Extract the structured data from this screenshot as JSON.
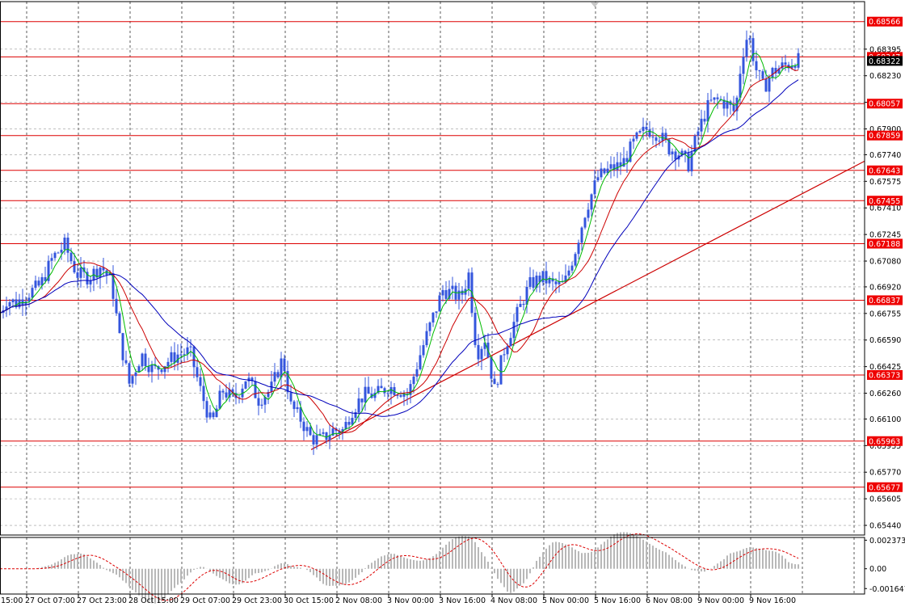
{
  "chart_data": {
    "type": "candlestick",
    "price_axis": {
      "range": [
        0.6538,
        0.6869
      ],
      "ticks": [
        0.68395,
        0.6823,
        0.68065,
        0.679,
        0.6774,
        0.67575,
        0.6741,
        0.67245,
        0.6708,
        0.6692,
        0.66755,
        0.6659,
        0.66425,
        0.6626,
        0.661,
        0.65935,
        0.6577,
        0.65605,
        0.6544
      ],
      "current_price": 0.68322
    },
    "time_axis": {
      "labels": [
        "27 Oct 07:00",
        "27 Oct 23:00",
        "28 Oct 15:00",
        "29 Oct 07:00",
        "29 Oct 23:00",
        "30 Oct 15:00",
        "2 Nov 08:00",
        "3 Nov 00:00",
        "3 Nov 16:00",
        "4 Nov 08:00",
        "5 Nov 00:00",
        "5 Nov 16:00",
        "6 Nov 08:00",
        "9 Nov 00:00",
        "9 Nov 16:00"
      ],
      "first_label_partial": "15:00"
    },
    "horizontal_levels": [
      0.68566,
      0.68347,
      0.68057,
      0.67859,
      0.67643,
      0.67455,
      0.67188,
      0.66837,
      0.66373,
      0.65963,
      0.65677
    ],
    "trendline": {
      "from": [
        385,
        0.6591
      ],
      "to": [
        1070,
        0.677
      ]
    },
    "anchors": [
      [
        0,
        0.6676
      ],
      [
        8,
        0.6684
      ],
      [
        20,
        0.6682
      ],
      [
        35,
        0.6688
      ],
      [
        50,
        0.6693
      ],
      [
        65,
        0.671
      ],
      [
        80,
        0.6718
      ],
      [
        95,
        0.67
      ],
      [
        110,
        0.6698
      ],
      [
        125,
        0.6705
      ],
      [
        138,
        0.6695
      ],
      [
        148,
        0.666
      ],
      [
        160,
        0.6632
      ],
      [
        175,
        0.665
      ],
      [
        190,
        0.664
      ],
      [
        205,
        0.6645
      ],
      [
        220,
        0.665
      ],
      [
        235,
        0.6652
      ],
      [
        248,
        0.6628
      ],
      [
        262,
        0.6606
      ],
      [
        275,
        0.6628
      ],
      [
        290,
        0.6622
      ],
      [
        305,
        0.6636
      ],
      [
        320,
        0.6622
      ],
      [
        335,
        0.6628
      ],
      [
        350,
        0.6648
      ],
      [
        360,
        0.6618
      ],
      [
        372,
        0.661
      ],
      [
        385,
        0.6598
      ],
      [
        398,
        0.6597
      ],
      [
        412,
        0.6603
      ],
      [
        425,
        0.6603
      ],
      [
        435,
        0.6615
      ],
      [
        450,
        0.6625
      ],
      [
        465,
        0.6625
      ],
      [
        480,
        0.663
      ],
      [
        495,
        0.6628
      ],
      [
        505,
        0.6625
      ],
      [
        520,
        0.665
      ],
      [
        535,
        0.6672
      ],
      [
        548,
        0.669
      ],
      [
        560,
        0.6688
      ],
      [
        570,
        0.6685
      ],
      [
        580,
        0.67
      ],
      [
        590,
        0.665
      ],
      [
        600,
        0.666
      ],
      [
        612,
        0.6628
      ],
      [
        625,
        0.6655
      ],
      [
        640,
        0.6675
      ],
      [
        655,
        0.6693
      ],
      [
        670,
        0.6698
      ],
      [
        685,
        0.6693
      ],
      [
        698,
        0.6693
      ],
      [
        712,
        0.6715
      ],
      [
        725,
        0.674
      ],
      [
        740,
        0.676
      ],
      [
        755,
        0.6765
      ],
      [
        770,
        0.6768
      ],
      [
        785,
        0.6782
      ],
      [
        800,
        0.679
      ],
      [
        815,
        0.6787
      ],
      [
        828,
        0.6778
      ],
      [
        840,
        0.6775
      ],
      [
        852,
        0.6768
      ],
      [
        865,
        0.679
      ],
      [
        878,
        0.6806
      ],
      [
        890,
        0.6808
      ],
      [
        900,
        0.6805
      ],
      [
        910,
        0.68
      ],
      [
        918,
        0.6835
      ],
      [
        926,
        0.685
      ],
      [
        935,
        0.6828
      ],
      [
        945,
        0.6815
      ],
      [
        955,
        0.6825
      ],
      [
        965,
        0.6828
      ],
      [
        975,
        0.683
      ],
      [
        985,
        0.6833
      ],
      [
        990,
        0.6832
      ]
    ],
    "moving_averages": [
      {
        "type": "SMA",
        "period": 5,
        "color": "#00bb00"
      },
      {
        "type": "SMA",
        "period": 14,
        "color": "#cc0000"
      },
      {
        "type": "SMA",
        "period": 30,
        "color": "#0000bb"
      }
    ],
    "oscillator": {
      "name": "MACD",
      "ticks": [
        0.002373,
        0.0,
        -0.001647
      ],
      "range": [
        -0.0021,
        0.0026
      ]
    },
    "colors": {
      "background": "#ffffff",
      "candles": "#3355dd",
      "level_line": "#dd0000",
      "level_label_bg": "#ee0000",
      "current_label_bg": "#000000",
      "grid": "#333333"
    }
  }
}
